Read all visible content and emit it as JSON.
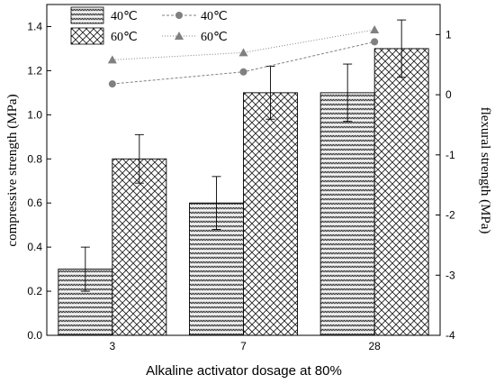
{
  "chart_data": {
    "type": "bar",
    "xlabel": "Alkaline activator dosage at 80%",
    "ylabel_left": "compressive strength (MPa)",
    "ylabel_right": "flexural strength (MPa)",
    "categories": [
      "3",
      "7",
      "28"
    ],
    "ylim_left": [
      0.0,
      1.5
    ],
    "yticks_left": [
      "0.0",
      "0.2",
      "0.4",
      "0.6",
      "0.8",
      "1.0",
      "1.2",
      "1.4"
    ],
    "ylim_right": [
      -4,
      1.5
    ],
    "yticks_right": [
      "-4",
      "-3",
      "-2",
      "-1",
      "0",
      "1"
    ],
    "grid": false,
    "legend_position": "top-left",
    "bar_series": [
      {
        "name": "40℃",
        "values": [
          0.3,
          0.6,
          1.1
        ],
        "errors": [
          0.1,
          0.12,
          0.13
        ],
        "pattern": "dense-wave"
      },
      {
        "name": "60℃",
        "values": [
          0.8,
          1.1,
          1.3
        ],
        "errors": [
          0.11,
          0.12,
          0.13
        ],
        "pattern": "crosshatch"
      }
    ],
    "line_series": [
      {
        "name": "40℃",
        "axis": "right",
        "values": [
          0.18,
          0.38,
          0.88
        ],
        "marker": "circle",
        "color": "#808080"
      },
      {
        "name": "60℃",
        "axis": "right",
        "values": [
          0.58,
          0.7,
          1.08
        ],
        "marker": "triangle",
        "color": "#808080"
      }
    ]
  }
}
